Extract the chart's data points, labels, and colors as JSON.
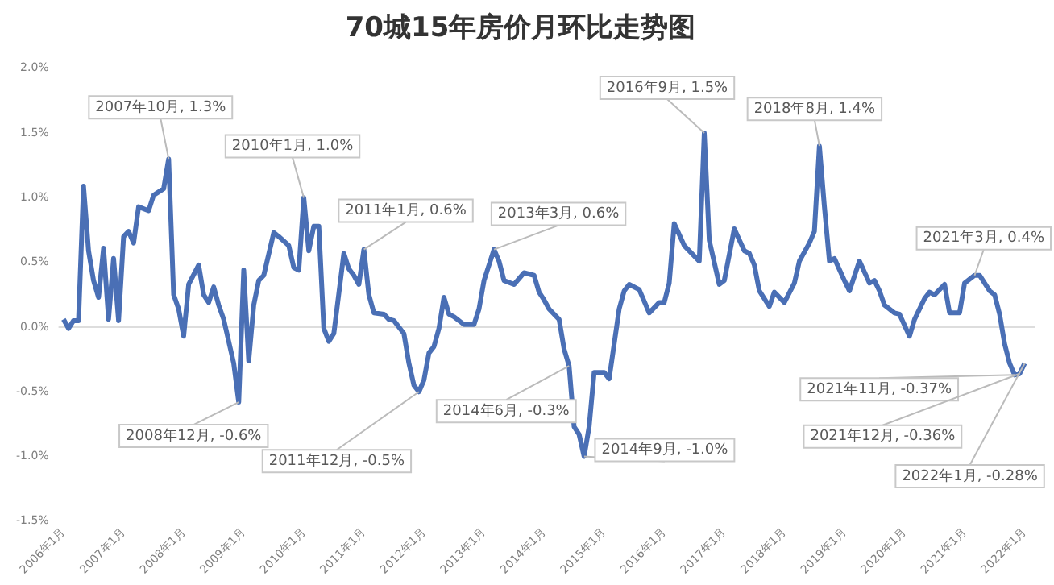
{
  "chart_data": {
    "type": "line",
    "title": "70城15年房价月环比走势图",
    "x": [
      "2006-01",
      "2006-02",
      "2006-03",
      "2006-04",
      "2006-05",
      "2006-06",
      "2006-07",
      "2006-08",
      "2006-09",
      "2006-10",
      "2006-11",
      "2006-12",
      "2007-01",
      "2007-02",
      "2007-03",
      "2007-04",
      "2007-06",
      "2007-07",
      "2007-09",
      "2007-10",
      "2007-11",
      "2007-12",
      "2008-01",
      "2008-02",
      "2008-04",
      "2008-05",
      "2008-06",
      "2008-07",
      "2008-08",
      "2008-09",
      "2008-11",
      "2008-12",
      "2009-01",
      "2009-02",
      "2009-03",
      "2009-04",
      "2009-05",
      "2009-07",
      "2009-08",
      "2009-10",
      "2009-11",
      "2009-12",
      "2010-01",
      "2010-02",
      "2010-03",
      "2010-04",
      "2010-05",
      "2010-06",
      "2010-07",
      "2010-09",
      "2010-10",
      "2010-11",
      "2010-12",
      "2011-01",
      "2011-02",
      "2011-03",
      "2011-05",
      "2011-06",
      "2011-07",
      "2011-09",
      "2011-10",
      "2011-11",
      "2011-12",
      "2012-01",
      "2012-02",
      "2012-03",
      "2012-04",
      "2012-05",
      "2012-06",
      "2012-07",
      "2012-09",
      "2012-11",
      "2012-12",
      "2013-01",
      "2013-03",
      "2013-04",
      "2013-05",
      "2013-07",
      "2013-09",
      "2013-11",
      "2013-12",
      "2014-01",
      "2014-02",
      "2014-04",
      "2014-05",
      "2014-06",
      "2014-07",
      "2014-08",
      "2014-09",
      "2014-10",
      "2014-11",
      "2015-01",
      "2015-02",
      "2015-03",
      "2015-04",
      "2015-05",
      "2015-06",
      "2015-08",
      "2015-10",
      "2015-12",
      "2016-01",
      "2016-02",
      "2016-03",
      "2016-05",
      "2016-08",
      "2016-09",
      "2016-10",
      "2016-12",
      "2017-01",
      "2017-03",
      "2017-05",
      "2017-06",
      "2017-07",
      "2017-08",
      "2017-10",
      "2017-11",
      "2018-01",
      "2018-03",
      "2018-04",
      "2018-06",
      "2018-07",
      "2018-08",
      "2018-09",
      "2018-10",
      "2018-11",
      "2019-01",
      "2019-02",
      "2019-04",
      "2019-06",
      "2019-07",
      "2019-08",
      "2019-09",
      "2019-11",
      "2019-12",
      "2020-02",
      "2020-03",
      "2020-05",
      "2020-06",
      "2020-07",
      "2020-09",
      "2020-10",
      "2020-12",
      "2021-01",
      "2021-03",
      "2021-04",
      "2021-06",
      "2021-07",
      "2021-08",
      "2021-09",
      "2021-10",
      "2021-11",
      "2021-12",
      "2022-01"
    ],
    "series": [
      {
        "color": "#4a6fb5",
        "values": [
          0.06,
          -0.01,
          0.05,
          0.05,
          1.09,
          0.59,
          0.36,
          0.23,
          0.61,
          0.06,
          0.53,
          0.05,
          0.7,
          0.74,
          0.65,
          0.93,
          0.9,
          1.02,
          1.07,
          1.3,
          0.25,
          0.14,
          -0.07,
          0.33,
          0.48,
          0.25,
          0.19,
          0.31,
          0.17,
          0.06,
          -0.28,
          -0.58,
          0.44,
          -0.26,
          0.17,
          0.36,
          0.4,
          0.73,
          0.7,
          0.63,
          0.46,
          0.44,
          1.0,
          0.59,
          0.78,
          0.78,
          -0.01,
          -0.11,
          -0.05,
          0.57,
          0.45,
          0.4,
          0.33,
          0.6,
          0.25,
          0.11,
          0.1,
          0.06,
          0.05,
          -0.05,
          -0.28,
          -0.45,
          -0.5,
          -0.41,
          -0.2,
          -0.15,
          -0.01,
          0.23,
          0.1,
          0.08,
          0.02,
          0.02,
          0.14,
          0.36,
          0.6,
          0.51,
          0.36,
          0.33,
          0.42,
          0.4,
          0.27,
          0.21,
          0.14,
          0.06,
          -0.17,
          -0.3,
          -0.77,
          -0.83,
          -1.0,
          -0.77,
          -0.35,
          -0.35,
          -0.4,
          -0.13,
          0.14,
          0.28,
          0.33,
          0.29,
          0.11,
          0.19,
          0.19,
          0.34,
          0.8,
          0.63,
          0.51,
          1.5,
          0.67,
          0.33,
          0.36,
          0.76,
          0.59,
          0.57,
          0.48,
          0.28,
          0.16,
          0.27,
          0.19,
          0.34,
          0.51,
          0.65,
          0.74,
          1.4,
          0.93,
          0.51,
          0.53,
          0.36,
          0.28,
          0.51,
          0.34,
          0.36,
          0.28,
          0.17,
          0.11,
          0.1,
          -0.07,
          0.06,
          0.22,
          0.27,
          0.25,
          0.33,
          0.11,
          0.11,
          0.34,
          0.4,
          0.4,
          0.28,
          0.25,
          0.1,
          -0.13,
          -0.28,
          -0.37,
          -0.36,
          -0.28
        ]
      }
    ],
    "xlim": [
      "2005-12",
      "2022-03"
    ],
    "xticks": [
      {
        "value": "2006-01",
        "label": "2006年1月"
      },
      {
        "value": "2007-01",
        "label": "2007年1月"
      },
      {
        "value": "2008-01",
        "label": "2008年1月"
      },
      {
        "value": "2009-01",
        "label": "2009年1月"
      },
      {
        "value": "2010-01",
        "label": "2010年1月"
      },
      {
        "value": "2011-01",
        "label": "2011年1月"
      },
      {
        "value": "2012-01",
        "label": "2012年1月"
      },
      {
        "value": "2013-01",
        "label": "2013年1月"
      },
      {
        "value": "2014-01",
        "label": "2014年1月"
      },
      {
        "value": "2015-01",
        "label": "2015年1月"
      },
      {
        "value": "2016-01",
        "label": "2016年1月"
      },
      {
        "value": "2017-01",
        "label": "2017年1月"
      },
      {
        "value": "2018-01",
        "label": "2018年1月"
      },
      {
        "value": "2019-01",
        "label": "2019年1月"
      },
      {
        "value": "2020-01",
        "label": "2020年1月"
      },
      {
        "value": "2021-01",
        "label": "2021年1月"
      },
      {
        "value": "2022-01",
        "label": "2022年1月"
      }
    ],
    "ylim": [
      -1.5,
      2.0
    ],
    "yticks": [
      {
        "value": -1.5,
        "label": "-1.5%"
      },
      {
        "value": -1.0,
        "label": "-1.0%"
      },
      {
        "value": -0.5,
        "label": "-0.5%"
      },
      {
        "value": 0,
        "label": "0.0%"
      },
      {
        "value": 0.5,
        "label": "0.5%"
      },
      {
        "value": 1.0,
        "label": "1.0%"
      },
      {
        "value": 1.5,
        "label": "1.5%"
      },
      {
        "value": 2.0,
        "label": "2.0%"
      }
    ],
    "ref_lines": [
      {
        "axis": "y",
        "value": 0,
        "color": "#dddddd"
      }
    ],
    "grid": false,
    "legend": false,
    "marker": "none",
    "line_style": "solid",
    "annotations": [
      {
        "text": "2007年10月, 1.3%",
        "x": "2007-10",
        "y": 1.3
      },
      {
        "text": "2010年1月, 1.0%",
        "x": "2010-01",
        "y": 1.0
      },
      {
        "text": "2011年1月, 0.6%",
        "x": "2011-01",
        "y": 0.6
      },
      {
        "text": "2013年3月, 0.6%",
        "x": "2013-03",
        "y": 0.6
      },
      {
        "text": "2014年6月, -0.3%",
        "x": "2014-06",
        "y": -0.3
      },
      {
        "text": "2014年9月, -1.0%",
        "x": "2014-09",
        "y": -1.0
      },
      {
        "text": "2008年12月, -0.6%",
        "x": "2008-12",
        "y": -0.58
      },
      {
        "text": "2011年12月, -0.5%",
        "x": "2011-12",
        "y": -0.5
      },
      {
        "text": "2016年9月, 1.5%",
        "x": "2016-09",
        "y": 1.5
      },
      {
        "text": "2018年8月, 1.4%",
        "x": "2018-08",
        "y": 1.4
      },
      {
        "text": "2021年3月, 0.4%",
        "x": "2021-03",
        "y": 0.4
      },
      {
        "text": "2021年11月, -0.37%",
        "x": "2021-11",
        "y": -0.37
      },
      {
        "text": "2021年12月, -0.36%",
        "x": "2021-12",
        "y": -0.36
      },
      {
        "text": "2022年1月, -0.28%",
        "x": "2022-01",
        "y": -0.28
      }
    ]
  }
}
